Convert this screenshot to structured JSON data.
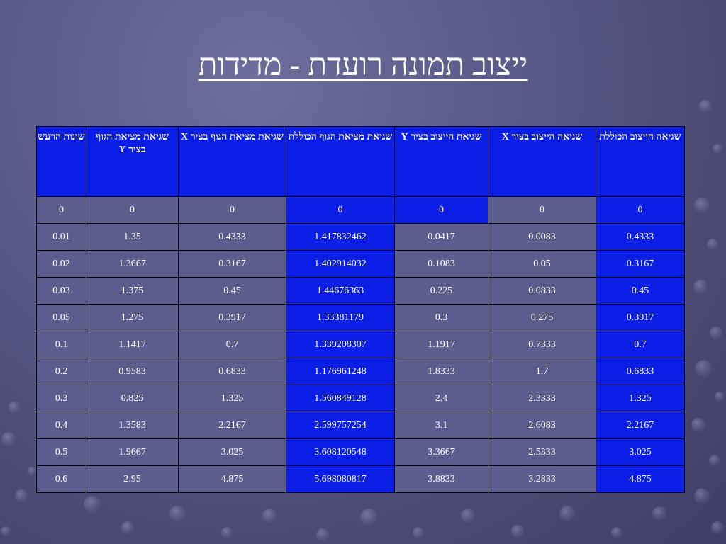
{
  "title": "ייצוב תמונה רועדת - מדידות",
  "table": {
    "headers": [
      "שגיאה הייצוב הכוללת",
      "שגיאה הייצוב בציר X",
      "שגיאת הייצוב בציר Y",
      "שגיאת מציאת הגוף הכוללת",
      "שגיאת מציאת הגוף בציר X",
      "שגיאת מציאת הגוף בציר Y",
      "שונות הרעש"
    ],
    "rows": [
      [
        "0",
        "0",
        "0",
        "0",
        "0",
        "0",
        "0"
      ],
      [
        "0.4333",
        "0.0083",
        "0.0417",
        "1.417832462",
        "0.4333",
        "1.35",
        "0.01"
      ],
      [
        "0.3167",
        "0.05",
        "0.1083",
        "1.402914032",
        "0.3167",
        "1.3667",
        "0.02"
      ],
      [
        "0.45",
        "0.0833",
        "0.225",
        "1.44676363",
        "0.45",
        "1.375",
        "0.03"
      ],
      [
        "0.3917",
        "0.275",
        "0.3",
        "1.33381179",
        "0.3917",
        "1.275",
        "0.05"
      ],
      [
        "0.7",
        "0.7333",
        "1.1917",
        "1.339208307",
        "0.7",
        "1.1417",
        "0.1"
      ],
      [
        "0.6833",
        "1.7",
        "1.8333",
        "1.176961248",
        "0.6833",
        "0.9583",
        "0.2"
      ],
      [
        "1.325",
        "2.3333",
        "2.4",
        "1.560849128",
        "1.325",
        "0.825",
        "0.3"
      ],
      [
        "2.2167",
        "2.6083",
        "3.1",
        "2.599757254",
        "2.2167",
        "1.3583",
        "0.4"
      ],
      [
        "3.025",
        "2.5333",
        "3.3667",
        "3.608120548",
        "3.025",
        "1.9667",
        "0.5"
      ],
      [
        "4.875",
        "3.2833",
        "3.8833",
        "5.698080817",
        "4.875",
        "2.95",
        "0.6"
      ]
    ]
  },
  "colors": {
    "background": "#5c5c8a",
    "cell_blue": "#0a1ee6",
    "cell_grey": "#5b5d8c",
    "text": "#ffffff"
  }
}
